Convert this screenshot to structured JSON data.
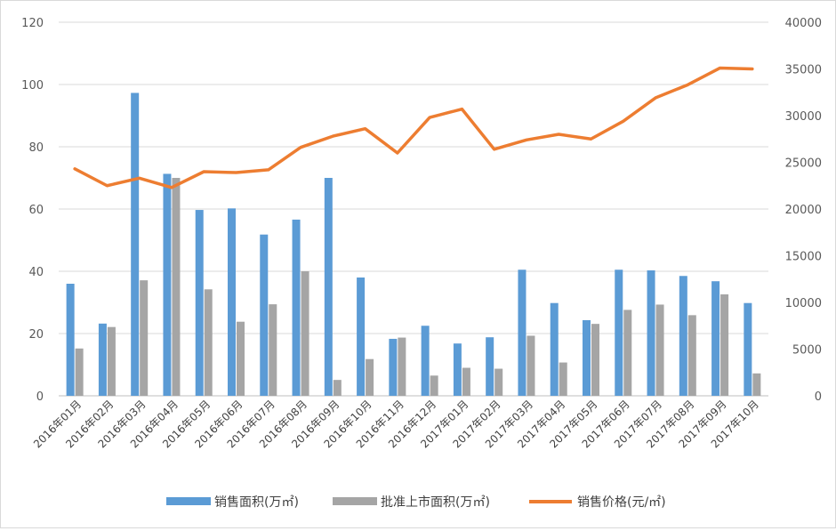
{
  "chart_data": {
    "type": "bar",
    "categories": [
      "2016年01月",
      "2016年02月",
      "2016年03月",
      "2016年04月",
      "2016年05月",
      "2016年06月",
      "2016年07月",
      "2016年08月",
      "2016年09月",
      "2016年10月",
      "2016年11月",
      "2016年12月",
      "2017年01月",
      "2017年02月",
      "2017年03月",
      "2017年04月",
      "2017年05月",
      "2017年06月",
      "2017年07月",
      "2017年08月",
      "2017年09月",
      "2017年10月"
    ],
    "series": [
      {
        "name": "销售面积(万㎡)",
        "type": "bar",
        "axis": "left",
        "color": "#5b9bd5",
        "values": [
          36,
          23.2,
          97.3,
          71.3,
          59.7,
          60.2,
          51.8,
          56.6,
          70,
          38,
          18.3,
          22.5,
          16.8,
          18.8,
          40.5,
          29.8,
          24.3,
          40.5,
          40.3,
          38.5,
          36.8,
          29.8
        ]
      },
      {
        "name": "批准上市面积(万㎡)",
        "type": "bar",
        "axis": "left",
        "color": "#a5a5a5",
        "values": [
          15.2,
          22.1,
          37.1,
          70,
          34.2,
          23.8,
          29.4,
          40,
          5.1,
          11.8,
          18.7,
          6.5,
          9,
          8.7,
          19.3,
          10.7,
          23.1,
          27.6,
          29.3,
          25.9,
          32.6,
          7.2
        ]
      },
      {
        "name": "销售价格(元/㎡)",
        "type": "line",
        "axis": "right",
        "color": "#ed7d31",
        "values": [
          24300,
          22500,
          23300,
          22300,
          24000,
          23900,
          24200,
          26600,
          27800,
          28600,
          26000,
          29800,
          30700,
          26400,
          27400,
          28000,
          27500,
          29400,
          31900,
          33300,
          35100,
          35000
        ]
      }
    ],
    "y_left": {
      "min": 0,
      "max": 120,
      "ticks": [
        0,
        20,
        40,
        60,
        80,
        100,
        120
      ]
    },
    "y_right": {
      "min": 0,
      "max": 40000,
      "ticks": [
        0,
        5000,
        10000,
        15000,
        20000,
        25000,
        30000,
        35000,
        40000
      ]
    },
    "grid": true,
    "legend_position": "bottom",
    "title": "",
    "xlabel": "",
    "ylabel": ""
  }
}
